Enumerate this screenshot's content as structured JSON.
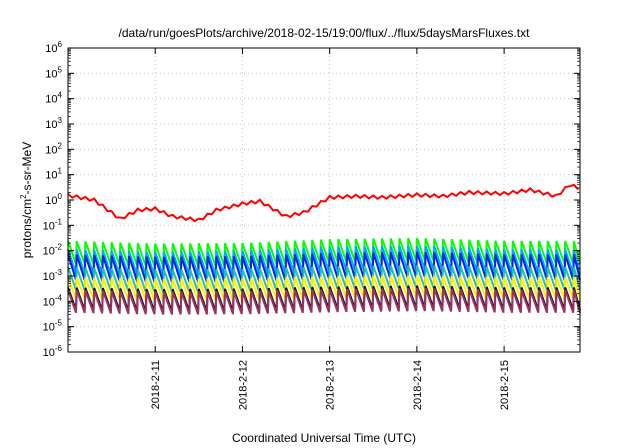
{
  "chart_data": {
    "type": "line",
    "title": "/data/run/goesPlots/archive/2018-02-15/19:00/flux/../flux/5daysMarsFluxes.txt",
    "xlabel": "Coordinated Universal Time (UTC)",
    "ylabel_parts": [
      "protons/cm",
      "2",
      "-s-sr-MeV"
    ],
    "y_scale": "log",
    "ylim_exp": [
      -6,
      6
    ],
    "y_tick_base": "10",
    "y_tick_exponents": [
      "-6",
      "-5",
      "-4",
      "-3",
      "-2",
      "-1",
      "0",
      "1",
      "2",
      "3",
      "4",
      "5",
      "6"
    ],
    "xlim_day": [
      0,
      5.87
    ],
    "x_ticks": [
      {
        "label": "2018-2-11",
        "day": 1
      },
      {
        "label": "2018-2-12",
        "day": 2
      },
      {
        "label": "2018-2-13",
        "day": 3
      },
      {
        "label": "2018-2-14",
        "day": 4
      },
      {
        "label": "2018-2-15",
        "day": 5
      }
    ],
    "grid": true,
    "legend": "none",
    "period_days": 0.1,
    "series": [
      {
        "color": "#ff0000",
        "profile": "smooth",
        "knots": [
          [
            0,
            0.18
          ],
          [
            0.3,
            0.0
          ],
          [
            0.6,
            -0.75
          ],
          [
            0.8,
            -0.4
          ],
          [
            1.0,
            -0.35
          ],
          [
            1.2,
            -0.65
          ],
          [
            1.5,
            -0.8
          ],
          [
            1.7,
            -0.4
          ],
          [
            2.0,
            -0.15
          ],
          [
            2.2,
            -0.05
          ],
          [
            2.5,
            -0.65
          ],
          [
            2.7,
            -0.5
          ],
          [
            3.0,
            0.1
          ],
          [
            3.3,
            0.15
          ],
          [
            3.6,
            0.1
          ],
          [
            4.0,
            0.2
          ],
          [
            4.3,
            0.15
          ],
          [
            4.6,
            0.3
          ],
          [
            5.0,
            0.25
          ],
          [
            5.3,
            0.4
          ],
          [
            5.6,
            0.15
          ],
          [
            5.75,
            0.6
          ],
          [
            5.87,
            0.45
          ]
        ]
      },
      {
        "color": "#00ff00",
        "profile": "sawtooth",
        "amp": 0.9,
        "peak": [
          -1.62,
          -1.72,
          -1.7,
          -1.55,
          -1.5,
          -1.62,
          -1.62
        ]
      },
      {
        "color": "#00aaff",
        "profile": "sawtooth",
        "amp": 0.95,
        "peak": [
          -1.95,
          -2.05,
          -2.0,
          -1.85,
          -1.8,
          -1.95,
          -1.95
        ]
      },
      {
        "color": "#0022ee",
        "profile": "sawtooth",
        "amp": 1.0,
        "peak": [
          -2.15,
          -2.25,
          -2.22,
          -2.1,
          -2.05,
          -2.15,
          -2.15
        ]
      },
      {
        "color": "#20c0b0",
        "profile": "sawtooth",
        "amp": 0.9,
        "peak": [
          -2.65,
          -2.75,
          -2.72,
          -2.62,
          -2.58,
          -2.65,
          -2.65
        ]
      },
      {
        "color": "#ffee00",
        "profile": "sawtooth",
        "amp": 0.85,
        "peak": [
          -3.05,
          -3.12,
          -3.1,
          -3.02,
          -2.98,
          -3.05,
          -3.05
        ]
      },
      {
        "color": "#111111",
        "profile": "sawtooth",
        "amp": 0.9,
        "peak": [
          -3.45,
          -3.52,
          -3.5,
          -3.42,
          -3.38,
          -3.45,
          -3.45
        ]
      },
      {
        "color": "#993366",
        "profile": "sawtooth",
        "amp": 0.9,
        "peak": [
          -3.55,
          -3.62,
          -3.6,
          -3.52,
          -3.48,
          -3.55,
          -3.55
        ]
      }
    ]
  }
}
